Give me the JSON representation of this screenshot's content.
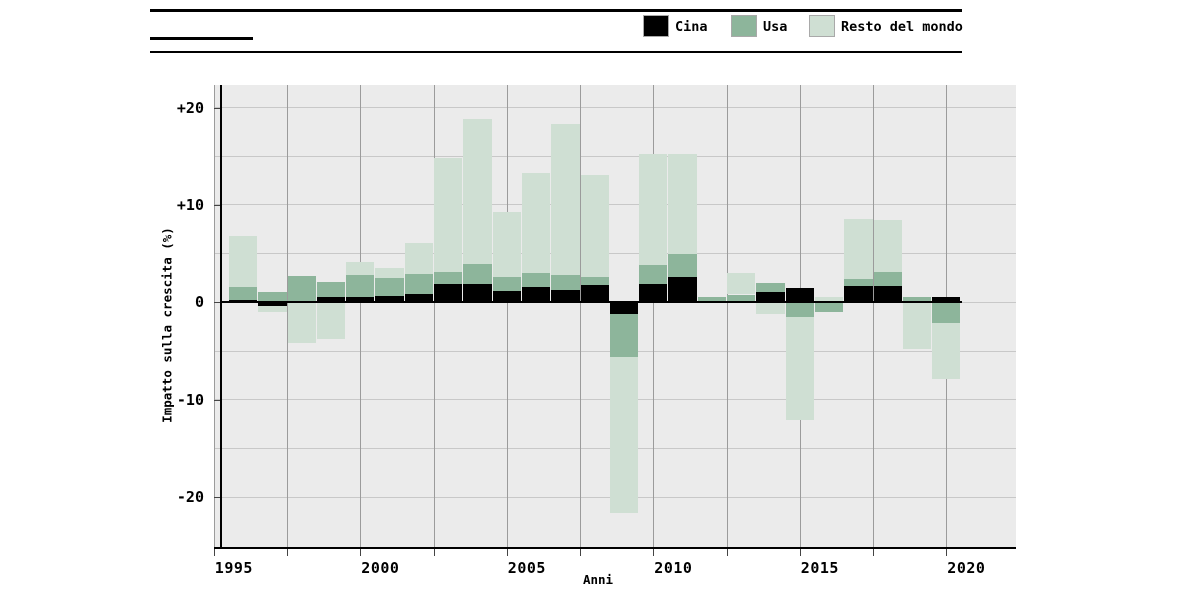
{
  "header": {
    "top_rule": "rule",
    "sub_dash": "short underline segment",
    "bottom_rule": "rule"
  },
  "legend": {
    "items": [
      {
        "label": "Cina",
        "color": "#000000"
      },
      {
        "label": "Usa",
        "color": "#8db59b"
      },
      {
        "label": "Resto del mondo",
        "color": "#cfdfd3"
      }
    ]
  },
  "chart_data": {
    "type": "bar",
    "stacked": true,
    "title": "",
    "xlabel": "Anni",
    "ylabel": "Impatto sulla crescita (%)",
    "categories": [
      1996,
      1997,
      1998,
      1999,
      2000,
      2001,
      2002,
      2003,
      2004,
      2005,
      2006,
      2007,
      2008,
      2009,
      2010,
      2011,
      2012,
      2013,
      2014,
      2015,
      2016,
      2017,
      2018,
      2019,
      2020
    ],
    "series": [
      {
        "name": "Cina",
        "color": "#000000",
        "values": [
          0.25,
          -0.4,
          0.1,
          0.5,
          0.55,
          0.65,
          0.9,
          1.9,
          1.9,
          1.2,
          1.6,
          1.3,
          1.8,
          -1.2,
          1.9,
          2.6,
          0.15,
          0.15,
          1.05,
          1.5,
          0.05,
          1.7,
          1.7,
          0.1,
          0.55
        ]
      },
      {
        "name": "Usa",
        "color": "#8db59b",
        "values": [
          1.35,
          1.1,
          2.6,
          1.6,
          2.25,
          1.8,
          2.0,
          1.2,
          2.0,
          1.4,
          1.4,
          1.5,
          0.8,
          -4.4,
          1.95,
          2.35,
          0.4,
          0.65,
          0.95,
          -1.5,
          -1.0,
          0.7,
          1.45,
          0.4,
          -2.1
        ]
      },
      {
        "name": "Resto del mondo",
        "color": "#cfdfd3",
        "values": [
          5.2,
          -0.55,
          -4.2,
          -3.8,
          1.35,
          1.05,
          3.2,
          11.7,
          14.9,
          6.7,
          10.3,
          15.5,
          10.45,
          -16.0,
          11.4,
          10.3,
          0.0,
          2.25,
          -1.25,
          -10.6,
          0.45,
          6.2,
          5.3,
          -4.8,
          -5.8
        ]
      }
    ],
    "ylim": [
      -25.2,
      22.3
    ],
    "xlim": [
      1994.7,
      2021.4
    ],
    "grid": true,
    "legend_position": "top",
    "grid_y": [
      -20,
      -15,
      -10,
      -5,
      0,
      5,
      10,
      15,
      20
    ],
    "grid_x": [
      1995,
      1997.5,
      2000,
      2002.5,
      2005,
      2007.5,
      2010,
      2012.5,
      2015,
      2017.5,
      2020
    ],
    "ytick_labels": [
      {
        "v": 20,
        "label": "+20"
      },
      {
        "v": 10,
        "label": "+10"
      },
      {
        "v": 0,
        "label": "0"
      },
      {
        "v": -10,
        "label": "-10"
      },
      {
        "v": -20,
        "label": "-20"
      }
    ],
    "xtick_labels": [
      {
        "v": 1995,
        "label": "1995"
      },
      {
        "v": 2000,
        "label": "2000"
      },
      {
        "v": 2005,
        "label": "2005"
      },
      {
        "v": 2010,
        "label": "2010"
      },
      {
        "v": 2015,
        "label": "2015"
      },
      {
        "v": 2020,
        "label": "2020"
      }
    ]
  },
  "colors": {
    "plot_bg": "#ebebeb",
    "grid_h": "#c8c8c8",
    "grid_v": "#9b9b9b",
    "axis": "#000000",
    "page_bg": "#ffffff"
  }
}
